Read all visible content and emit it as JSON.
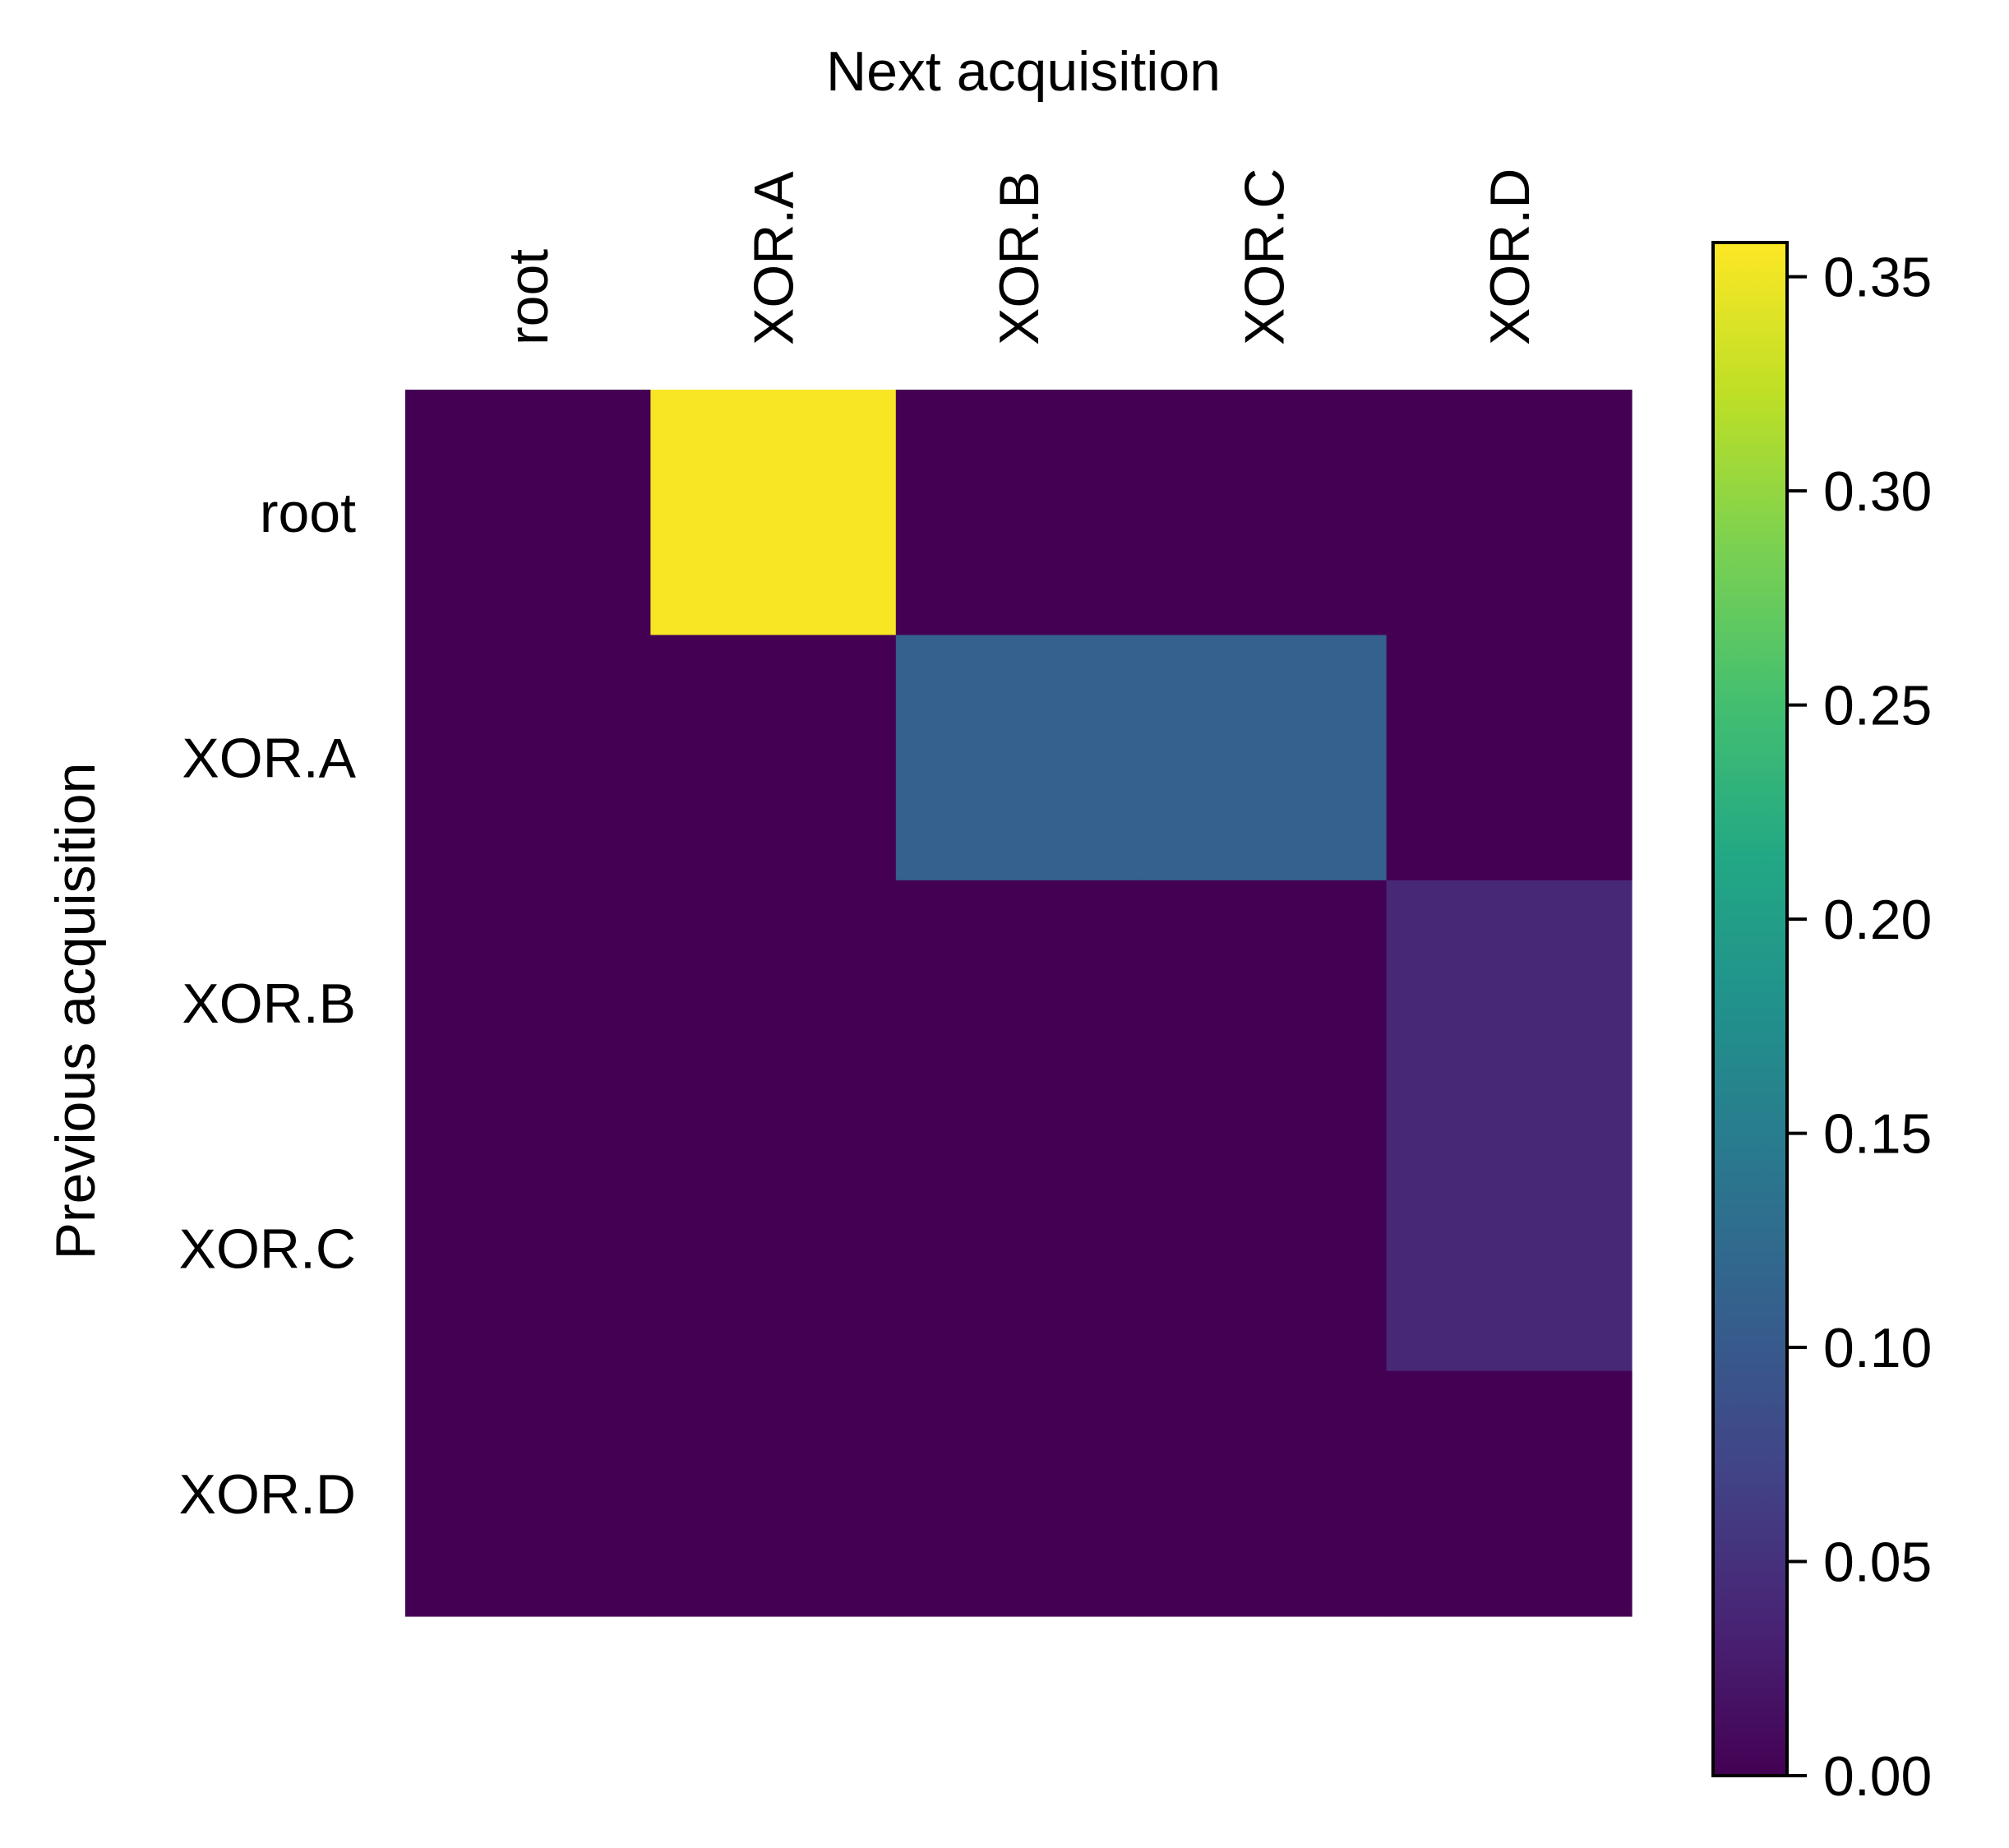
{
  "chart_data": {
    "type": "heatmap",
    "title": "",
    "xlabel": "Next acquisition",
    "ylabel": "Previous acquisition",
    "x_categories": [
      "root",
      "XOR.A",
      "XOR.B",
      "XOR.C",
      "XOR.D"
    ],
    "y_categories": [
      "root",
      "XOR.A",
      "XOR.B",
      "XOR.C",
      "XOR.D"
    ],
    "values": [
      [
        0.0,
        0.355,
        0.0,
        0.0,
        0.0
      ],
      [
        0.0,
        0.0,
        0.11,
        0.11,
        0.0
      ],
      [
        0.0,
        0.0,
        0.0,
        0.0,
        0.04
      ],
      [
        0.0,
        0.0,
        0.0,
        0.0,
        0.04
      ],
      [
        0.0,
        0.0,
        0.0,
        0.0,
        0.0
      ]
    ],
    "colormap": "viridis",
    "colorbar": {
      "min": 0.0,
      "max": 0.358,
      "ticks": [
        "0.00",
        "0.05",
        "0.10",
        "0.15",
        "0.20",
        "0.25",
        "0.30",
        "0.35"
      ]
    },
    "x_tick_position": "top",
    "x_tick_rotation": "vertical"
  }
}
